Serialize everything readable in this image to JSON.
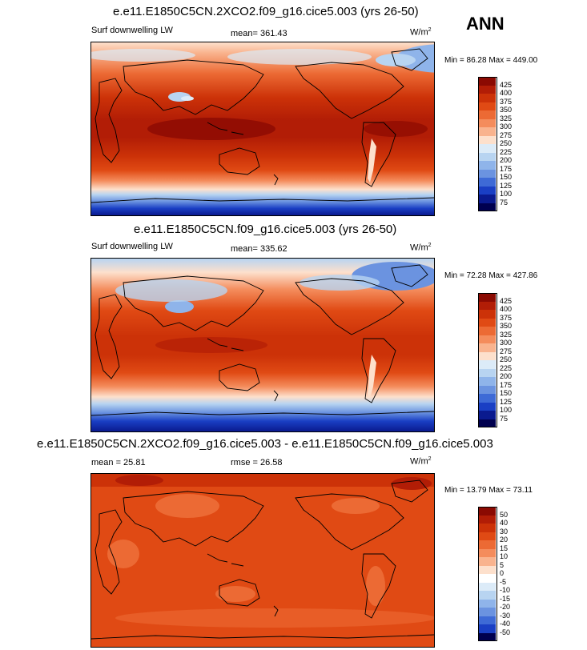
{
  "season": "ANN",
  "panels": [
    {
      "title": "e.e11.E1850C5CN.2XCO2.f09_g16.cice5.003 (yrs 26-50)",
      "variable": "Surf downwelling LW",
      "mean": "mean= 361.43",
      "units": "W/m",
      "units_sup": "2",
      "minmax": "Min =  86.28 Max = 449.00",
      "levels": [
        "425",
        "400",
        "375",
        "350",
        "325",
        "300",
        "275",
        "250",
        "225",
        "200",
        "175",
        "150",
        "125",
        "100",
        "75"
      ]
    },
    {
      "title": "e.e11.E1850C5CN.f09_g16.cice5.003 (yrs 26-50)",
      "variable": "Surf downwelling LW",
      "mean": "mean= 335.62",
      "units": "W/m",
      "units_sup": "2",
      "minmax": "Min =  72.28 Max = 427.86",
      "levels": [
        "425",
        "400",
        "375",
        "350",
        "325",
        "300",
        "275",
        "250",
        "225",
        "200",
        "175",
        "150",
        "125",
        "100",
        "75"
      ]
    },
    {
      "title": "e.e11.E1850C5CN.2XCO2.f09_g16.cice5.003 - e.e11.E1850C5CN.f09_g16.cice5.003",
      "mean": "mean =  25.81",
      "rmse": "rmse =  26.58",
      "units": "W/m",
      "units_sup": "2",
      "minmax": "Min =  13.79 Max =  73.11",
      "levels": [
        "50",
        "40",
        "30",
        "20",
        "15",
        "10",
        "5",
        "0",
        "-5",
        "-10",
        "-15",
        "-20",
        "-30",
        "-40",
        "-50"
      ]
    }
  ],
  "colors": {
    "abs_scale": [
      "#8b0a02",
      "#b21d06",
      "#cc3208",
      "#e04a14",
      "#ec6a34",
      "#f48c5c",
      "#f9b38e",
      "#fde0cc",
      "#dcebf8",
      "#b8d4f1",
      "#8fb4ea",
      "#6b93e0",
      "#3e6ad6",
      "#1a3fc4",
      "#0a1a8f",
      "#00004f"
    ],
    "diff_scale": [
      "#8b0a02",
      "#b21d06",
      "#cc3208",
      "#e04a14",
      "#ec6a34",
      "#f48c5c",
      "#f9b38e",
      "#fde0cc",
      "#ffffff",
      "#dcebf8",
      "#b8d4f1",
      "#8fb4ea",
      "#6b93e0",
      "#3e6ad6",
      "#1a3fc4",
      "#00004f"
    ]
  }
}
